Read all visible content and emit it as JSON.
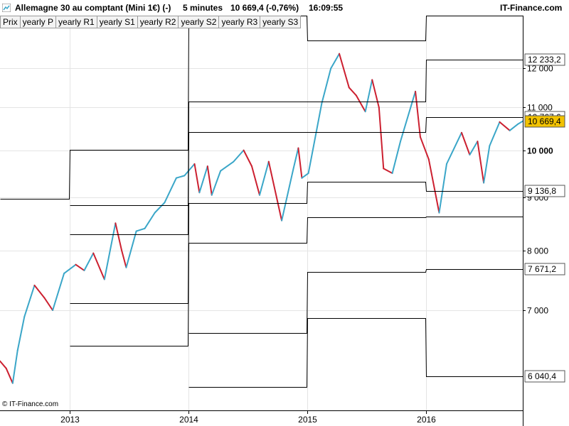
{
  "header": {
    "instrument": "Allemagne 30 au comptant (Mini 1€) (-)",
    "interval": "5 minutes",
    "quote": "10 669,4 (-0,76%)",
    "time": "16:09:55",
    "brand": "IT-Finance.com"
  },
  "tabs": [
    "Prix",
    "yearly P",
    "yearly R1",
    "yearly S1",
    "yearly R2",
    "yearly S2",
    "yearly R3",
    "yearly S3"
  ],
  "footer": {
    "copyright": "© IT-Finance.com"
  },
  "colors": {
    "up": "#3aa6c8",
    "down": "#cc2030",
    "levels": "#000000",
    "price_tag": "#f2c200"
  },
  "chart_data": {
    "type": "line",
    "title": "Allemagne 30 au comptant (Mini 1€) (-)",
    "ylim": [
      5600,
      13500
    ],
    "y_scale": "log",
    "y_ticks": [
      {
        "v": 12000,
        "label": "12 000",
        "bold": false
      },
      {
        "v": 11000,
        "label": "11 000",
        "bold": false
      },
      {
        "v": 10000,
        "label": "10 000",
        "bold": true
      },
      {
        "v": 9000,
        "label": "9 000",
        "bold": false
      },
      {
        "v": 8000,
        "label": "8 000",
        "bold": false
      },
      {
        "v": 7000,
        "label": "7 000",
        "bold": false
      }
    ],
    "xlim": [
      "2012-06-01",
      "2016-10-25"
    ],
    "x_ticks": [
      {
        "date": "2013-01-01",
        "label": "2013"
      },
      {
        "date": "2014-01-01",
        "label": "2014"
      },
      {
        "date": "2015-01-01",
        "label": "2015"
      },
      {
        "date": "2016-01-01",
        "label": "2016"
      }
    ],
    "price_series": {
      "name": "Prix",
      "points": [
        [
          "2012-06-01",
          6250
        ],
        [
          "2012-06-20",
          6150
        ],
        [
          "2012-07-10",
          5950
        ],
        [
          "2012-07-25",
          6400
        ],
        [
          "2012-08-15",
          6900
        ],
        [
          "2012-09-15",
          7400
        ],
        [
          "2012-10-15",
          7200
        ],
        [
          "2012-11-10",
          7000
        ],
        [
          "2012-12-15",
          7600
        ],
        [
          "2013-01-20",
          7750
        ],
        [
          "2013-02-15",
          7650
        ],
        [
          "2013-03-15",
          7950
        ],
        [
          "2013-04-18",
          7500
        ],
        [
          "2013-05-22",
          8500
        ],
        [
          "2013-06-10",
          8000
        ],
        [
          "2013-06-24",
          7700
        ],
        [
          "2013-07-25",
          8350
        ],
        [
          "2013-08-20",
          8400
        ],
        [
          "2013-09-20",
          8700
        ],
        [
          "2013-10-20",
          8900
        ],
        [
          "2013-11-25",
          9400
        ],
        [
          "2013-12-20",
          9450
        ],
        [
          "2014-01-20",
          9700
        ],
        [
          "2014-02-04",
          9100
        ],
        [
          "2014-03-01",
          9650
        ],
        [
          "2014-03-14",
          9050
        ],
        [
          "2014-04-10",
          9550
        ],
        [
          "2014-05-20",
          9750
        ],
        [
          "2014-06-20",
          10000
        ],
        [
          "2014-07-15",
          9650
        ],
        [
          "2014-08-08",
          9050
        ],
        [
          "2014-09-05",
          9750
        ],
        [
          "2014-10-15",
          8550
        ],
        [
          "2014-11-20",
          9600
        ],
        [
          "2014-12-05",
          10050
        ],
        [
          "2014-12-16",
          9400
        ],
        [
          "2015-01-05",
          9500
        ],
        [
          "2015-02-15",
          11100
        ],
        [
          "2015-03-15",
          12000
        ],
        [
          "2015-04-10",
          12400
        ],
        [
          "2015-05-10",
          11500
        ],
        [
          "2015-06-01",
          11300
        ],
        [
          "2015-06-29",
          10900
        ],
        [
          "2015-07-20",
          11700
        ],
        [
          "2015-08-10",
          11000
        ],
        [
          "2015-08-24",
          9600
        ],
        [
          "2015-09-20",
          9500
        ],
        [
          "2015-10-15",
          10200
        ],
        [
          "2015-11-30",
          11400
        ],
        [
          "2015-12-15",
          10300
        ],
        [
          "2016-01-10",
          9800
        ],
        [
          "2016-02-11",
          8700
        ],
        [
          "2016-03-05",
          9700
        ],
        [
          "2016-04-20",
          10400
        ],
        [
          "2016-05-15",
          9900
        ],
        [
          "2016-06-08",
          10200
        ],
        [
          "2016-06-27",
          9300
        ],
        [
          "2016-07-15",
          10100
        ],
        [
          "2016-08-15",
          10650
        ],
        [
          "2016-09-15",
          10450
        ],
        [
          "2016-10-10",
          10600
        ],
        [
          "2016-10-25",
          10670
        ]
      ]
    },
    "level_series": [
      {
        "name": "yearly R3",
        "segments": [
          {
            "from": "2012-01-01",
            "to": "2012-12-31",
            "value": 8980
          },
          {
            "from": "2013-01-01",
            "to": "2013-12-31",
            "value": 10010
          },
          {
            "from": "2014-01-01",
            "to": "2014-12-31",
            "value": 13650
          },
          {
            "from": "2015-01-01",
            "to": "2015-12-31",
            "value": 12780
          },
          {
            "from": "2016-01-01",
            "to": "2016-10-25",
            "value": 13900
          }
        ]
      },
      {
        "name": "yearly R2",
        "segments": [
          {
            "from": "2013-01-01",
            "to": "2013-12-31",
            "value": 8850
          },
          {
            "from": "2014-01-01",
            "to": "2014-12-31",
            "value": 11150
          },
          {
            "from": "2015-01-01",
            "to": "2015-12-31",
            "value": 11150
          },
          {
            "from": "2016-01-01",
            "to": "2016-10-25",
            "value": 12233.2
          }
        ]
      },
      {
        "name": "yearly R1",
        "segments": [
          {
            "from": "2013-01-01",
            "to": "2013-12-31",
            "value": 8290
          },
          {
            "from": "2014-01-01",
            "to": "2014-12-31",
            "value": 10420
          },
          {
            "from": "2015-01-01",
            "to": "2015-12-31",
            "value": 10410
          },
          {
            "from": "2016-01-01",
            "to": "2016-10-25",
            "value": 10767.6
          }
        ]
      },
      {
        "name": "yearly P",
        "segments": [
          {
            "from": "2013-01-01",
            "to": "2013-12-31",
            "value": 7110
          },
          {
            "from": "2014-01-01",
            "to": "2014-12-31",
            "value": 8890
          },
          {
            "from": "2015-01-01",
            "to": "2015-12-31",
            "value": 9320
          },
          {
            "from": "2016-01-01",
            "to": "2016-10-25",
            "value": 9136.8
          }
        ]
      },
      {
        "name": "yearly S1",
        "segments": [
          {
            "from": "2013-01-01",
            "to": "2013-12-31",
            "value": 6470
          },
          {
            "from": "2014-01-01",
            "to": "2014-12-31",
            "value": 8140
          },
          {
            "from": "2015-01-01",
            "to": "2015-12-31",
            "value": 8610
          },
          {
            "from": "2016-01-01",
            "to": "2016-10-25",
            "value": 8630
          }
        ]
      },
      {
        "name": "yearly S2",
        "segments": [
          {
            "from": "2014-01-01",
            "to": "2014-12-31",
            "value": 6650
          },
          {
            "from": "2015-01-01",
            "to": "2015-12-31",
            "value": 7620
          },
          {
            "from": "2016-01-01",
            "to": "2016-10-25",
            "value": 7671.2
          }
        ]
      },
      {
        "name": "yearly S3",
        "segments": [
          {
            "from": "2014-01-01",
            "to": "2014-12-31",
            "value": 5900
          },
          {
            "from": "2015-01-01",
            "to": "2015-12-31",
            "value": 6880
          },
          {
            "from": "2016-01-01",
            "to": "2016-10-25",
            "value": 6040.4
          }
        ]
      }
    ],
    "value_labels": [
      {
        "value": 12233.2,
        "label": "12 233,2",
        "highlight": false
      },
      {
        "value": 10767.6,
        "label": "10 767,6",
        "highlight": false
      },
      {
        "value": 10669.4,
        "label": "10 669,4",
        "highlight": true
      },
      {
        "value": 9136.8,
        "label": "9 136,8",
        "highlight": false
      },
      {
        "value": 7671.2,
        "label": "7 671,2",
        "highlight": false
      },
      {
        "value": 6040.4,
        "label": "6 040,4",
        "highlight": false
      }
    ]
  }
}
